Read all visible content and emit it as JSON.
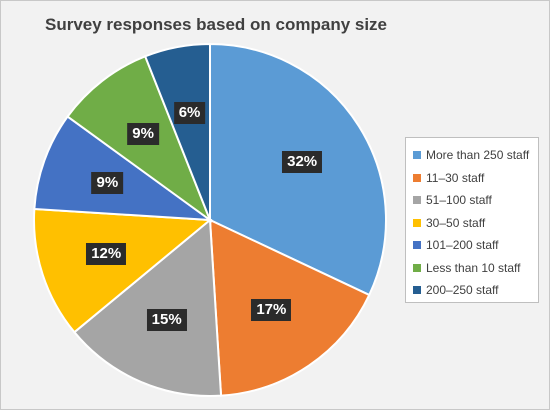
{
  "chart_data": {
    "type": "pie",
    "title": "Survey responses based on company size",
    "slices": [
      {
        "label": "More than 250 staff",
        "value": 32,
        "display": "32%",
        "color": "#5b9bd5"
      },
      {
        "label": "11–30 staff",
        "value": 17,
        "display": "17%",
        "color": "#ed7d31"
      },
      {
        "label": "51–100 staff",
        "value": 15,
        "display": "15%",
        "color": "#a5a5a5"
      },
      {
        "label": "30–50 staff",
        "value": 12,
        "display": "12%",
        "color": "#ffc000"
      },
      {
        "label": "101–200 staff",
        "value": 9,
        "display": "9%",
        "color": "#4472c4"
      },
      {
        "label": "Less than 10 staff",
        "value": 9,
        "display": "9%",
        "color": "#70ad47"
      },
      {
        "label": "200–250 staff",
        "value": 6,
        "display": "6%",
        "color": "#255e91"
      }
    ],
    "legend_position": "right"
  }
}
